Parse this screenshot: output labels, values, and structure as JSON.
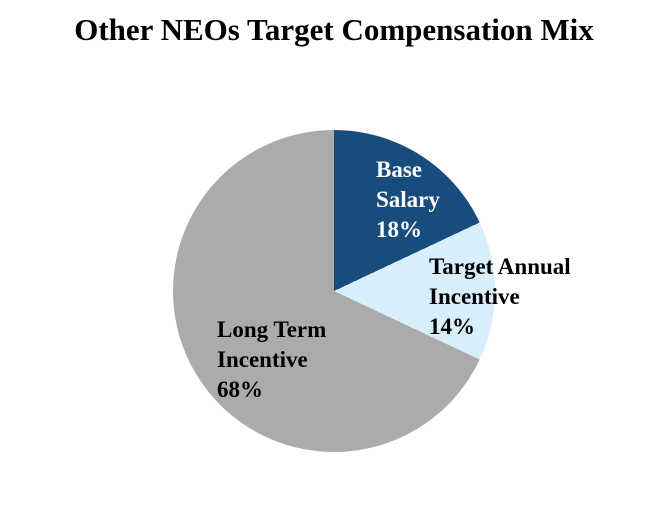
{
  "title": "Other NEOs Target Compensation Mix",
  "chart_data": {
    "type": "pie",
    "title": "Other NEOs Target Compensation Mix",
    "start_angle_deg": 0,
    "direction": "clockwise",
    "legend": "none",
    "background_color": "#ffffff",
    "slices": [
      {
        "label": "Base Salary",
        "value": 18,
        "unit": "%",
        "color": "#174C7D",
        "label_color": "#FFFFFF",
        "display": "Base\nSalary\n18%"
      },
      {
        "label": "Target Annual Incentive",
        "value": 14,
        "unit": "%",
        "color": "#D8EEFA",
        "label_color": "#000000",
        "display": "Target Annual\nIncentive\n14%"
      },
      {
        "label": "Long Term Incentive",
        "value": 68,
        "unit": "%",
        "color": "#ABABAB",
        "label_color": "#000000",
        "display": "Long Term\nIncentive\n68%"
      }
    ]
  }
}
